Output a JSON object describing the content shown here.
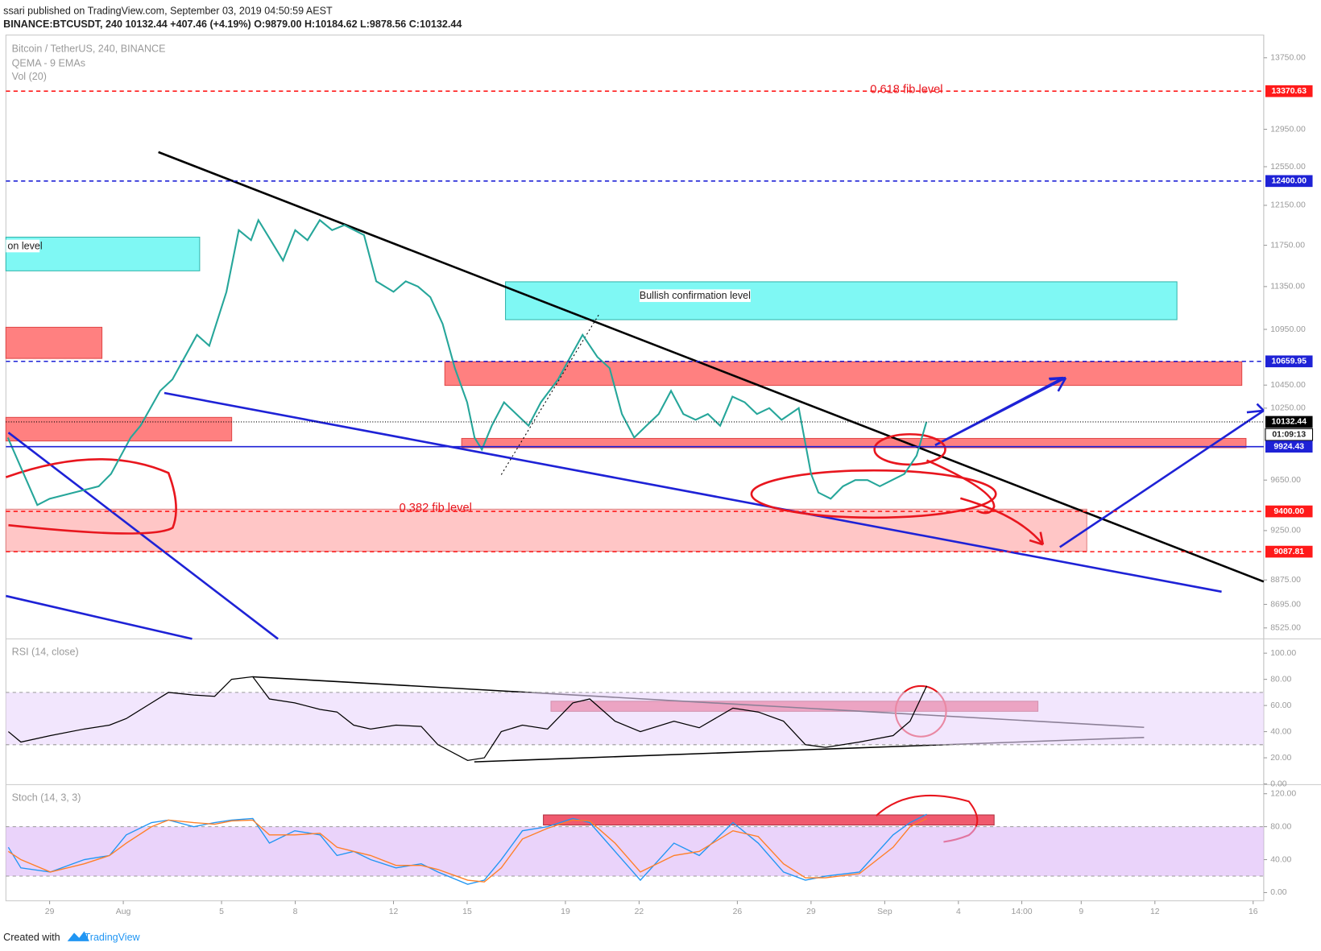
{
  "header": {
    "published": "ssari published on TradingView.com, September 03, 2019 04:50:59 AEST",
    "symbol": "BINANCE:BTCUSDT, 240  10132.44  +407.46 (+4.19%)  O:9879.00  H:10184.62  L:9878.56  C:10132.44"
  },
  "footer": {
    "created": "Created with",
    "brand": "TradingView"
  },
  "chart_data": [
    {
      "type": "line",
      "labels": [
        "Bitcoin / TetherUS, 240, BINANCE",
        "QEMA - 9 EMAs",
        "Vol (20)"
      ],
      "color": "#26a69a",
      "log": true,
      "xlim": [
        27.22,
        78.43
      ],
      "ylim": [
        8447,
        14015
      ],
      "x": [
        27.3,
        28.5,
        29,
        30,
        31,
        31.5,
        32.3,
        32.7,
        33.5,
        34,
        35,
        35.5,
        36.2,
        36.7,
        37.2,
        37.5,
        38,
        38.5,
        39,
        39.5,
        40,
        40.5,
        41,
        41.8,
        42.3,
        43,
        43.5,
        44,
        44.5,
        45,
        45.5,
        46,
        46.3,
        46.6,
        47,
        47.5,
        48,
        48.5,
        49,
        49.7,
        50.2,
        50.7,
        51.3,
        51.8,
        52.3,
        52.8,
        53.3,
        53.8,
        54.3,
        54.8,
        55.3,
        55.8,
        56.3,
        56.8,
        57.3,
        57.8,
        58.3,
        58.8,
        59.5,
        60,
        60.3,
        60.8,
        61.3,
        61.8,
        62.3,
        62.8,
        63.3,
        63.8,
        64.3,
        64.7
      ],
      "values": [
        10000,
        9450,
        9500,
        9550,
        9600,
        9700,
        10000,
        10100,
        10400,
        10500,
        10900,
        10800,
        11300,
        11900,
        11800,
        12000,
        11800,
        11600,
        11900,
        11800,
        12000,
        11900,
        11950,
        11850,
        11400,
        11300,
        11400,
        11350,
        11250,
        11000,
        10600,
        10300,
        10000,
        9900,
        10100,
        10300,
        10200,
        10100,
        10300,
        10500,
        10700,
        10900,
        10700,
        10600,
        10200,
        10000,
        10100,
        10200,
        10400,
        10200,
        10150,
        10200,
        10100,
        10350,
        10300,
        10200,
        10250,
        10150,
        10250,
        9700,
        9550,
        9500,
        9600,
        9650,
        9650,
        9600,
        9650,
        9700,
        9850,
        10132.44
      ],
      "yticks": [
        {
          "value": 13750,
          "label": "13750.00"
        },
        {
          "value": 12950,
          "label": "12950.00"
        },
        {
          "value": 12550,
          "label": "12550.00"
        },
        {
          "value": 12150,
          "label": "12150.00"
        },
        {
          "value": 11750,
          "label": "11750.00"
        },
        {
          "value": 11350,
          "label": "11350.00"
        },
        {
          "value": 10950,
          "label": "10950.00"
        },
        {
          "value": 10450,
          "label": "10450.00"
        },
        {
          "value": 10250,
          "label": "10250.00"
        },
        {
          "value": 9650,
          "label": "9650.00"
        },
        {
          "value": 9250,
          "label": "9250.00"
        },
        {
          "value": 8875,
          "label": "8875.00"
        },
        {
          "value": 8695,
          "label": "8695.00"
        },
        {
          "value": 8525,
          "label": "8525.00"
        }
      ],
      "xticks": [
        {
          "value": 29,
          "label": "29"
        },
        {
          "value": 32,
          "label": "Aug"
        },
        {
          "value": 36,
          "label": "5"
        },
        {
          "value": 39,
          "label": "8"
        },
        {
          "value": 43,
          "label": "12"
        },
        {
          "value": 46,
          "label": "15"
        },
        {
          "value": 50,
          "label": "19"
        },
        {
          "value": 53,
          "label": "22"
        },
        {
          "value": 57,
          "label": "26"
        },
        {
          "value": 60,
          "label": "29"
        },
        {
          "value": 63,
          "label": "Sep"
        },
        {
          "value": 66,
          "label": "4"
        },
        {
          "value": 68.58,
          "label": "14:00"
        },
        {
          "value": 71,
          "label": "9"
        },
        {
          "value": 74,
          "label": "12"
        },
        {
          "value": 78,
          "label": "16"
        }
      ],
      "levels": [
        {
          "value": 13370.63,
          "label": "13370.63",
          "color": "#ff1a1a",
          "style": "dashed"
        },
        {
          "value": 12400,
          "label": "12400.00",
          "color": "#1e22d6",
          "style": "dashed"
        },
        {
          "value": 10659.95,
          "label": "10659.95",
          "color": "#1e22d6",
          "style": "dashed"
        },
        {
          "value": 10132.44,
          "label": "10132.44",
          "color": "#000000",
          "style": "dotted"
        },
        {
          "value": 9924.43,
          "label": "9924.43",
          "color": "#1e22d6",
          "style": "solid"
        },
        {
          "value": 9400,
          "label": "9400.00",
          "color": "#ff1a1a",
          "style": "dashed"
        },
        {
          "value": 9087.81,
          "label": "9087.81",
          "color": "#ff1a1a",
          "style": "dashed"
        }
      ],
      "countdown": "01:09:13",
      "annotations": [
        "0.618 fib level",
        "0.382 fib level",
        "Bullish confirmation level",
        "on level"
      ]
    },
    {
      "type": "line",
      "title": "RSI (14, close)",
      "color": "#000000",
      "ylim": [
        -0.5,
        109
      ],
      "band": [
        30,
        70
      ],
      "x": [
        27.32,
        27.83,
        29.03,
        30.41,
        31.44,
        32.12,
        33.15,
        33.84,
        34.87,
        35.72,
        36.41,
        37.27,
        37.95,
        38.98,
        40.01,
        40.7,
        41.38,
        42.07,
        43.1,
        44.13,
        44.81,
        46.02,
        46.7,
        47.39,
        48.25,
        49.27,
        50.3,
        50.99,
        52.02,
        53.05,
        54.42,
        55.45,
        56.82,
        57.85,
        58.88,
        59.77,
        60.59,
        61.97,
        63.34,
        64.03,
        64.71
      ],
      "values": [
        40,
        32,
        37,
        42,
        45,
        50,
        62,
        70,
        68,
        67,
        80,
        82,
        65,
        62,
        57,
        55,
        45,
        42,
        45,
        44,
        30,
        18,
        20,
        40,
        45,
        42,
        62,
        65,
        48,
        40,
        48,
        43,
        58,
        55,
        48,
        30,
        28,
        32,
        37,
        48,
        75
      ],
      "yticks": [
        {
          "value": 0,
          "label": "0.00"
        },
        {
          "value": 20,
          "label": "20.00"
        },
        {
          "value": 40,
          "label": "40.00"
        },
        {
          "value": 60,
          "label": "60.00"
        },
        {
          "value": 80,
          "label": "80.00"
        },
        {
          "value": 100,
          "label": "100.00"
        }
      ]
    },
    {
      "type": "line",
      "title": "Stoch (14, 3, 3)",
      "ylim": [
        -10,
        128
      ],
      "band": [
        20,
        80
      ],
      "x": [
        27.32,
        27.83,
        29.03,
        30.41,
        31.44,
        32.12,
        33.15,
        33.84,
        34.87,
        35.72,
        36.41,
        37.27,
        37.95,
        38.98,
        40.01,
        40.7,
        41.38,
        42.07,
        43.1,
        44.13,
        44.81,
        46.02,
        46.7,
        47.39,
        48.25,
        49.27,
        50.3,
        50.99,
        52.02,
        53.05,
        54.42,
        55.45,
        56.82,
        57.85,
        58.88,
        59.77,
        60.59,
        61.97,
        63.34,
        64.03,
        64.71
      ],
      "series": [
        {
          "color": "#2196f3",
          "values": [
            55,
            30,
            25,
            40,
            45,
            70,
            85,
            88,
            80,
            85,
            88,
            90,
            60,
            75,
            70,
            45,
            50,
            40,
            30,
            35,
            25,
            10,
            15,
            40,
            75,
            80,
            90,
            85,
            50,
            15,
            60,
            45,
            85,
            60,
            25,
            15,
            20,
            25,
            70,
            85,
            95
          ]
        },
        {
          "color": "#ff7f27",
          "values": [
            50,
            40,
            25,
            35,
            45,
            60,
            80,
            88,
            85,
            83,
            87,
            88,
            70,
            70,
            72,
            55,
            50,
            45,
            33,
            33,
            28,
            15,
            13,
            30,
            65,
            78,
            88,
            87,
            60,
            25,
            45,
            50,
            75,
            68,
            35,
            18,
            18,
            23,
            55,
            80,
            90
          ]
        }
      ],
      "yticks": [
        {
          "value": 0,
          "label": "0.00"
        },
        {
          "value": 40,
          "label": "40.00"
        },
        {
          "value": 80,
          "label": "80.00"
        },
        {
          "value": 120,
          "label": "120.00"
        }
      ]
    }
  ]
}
